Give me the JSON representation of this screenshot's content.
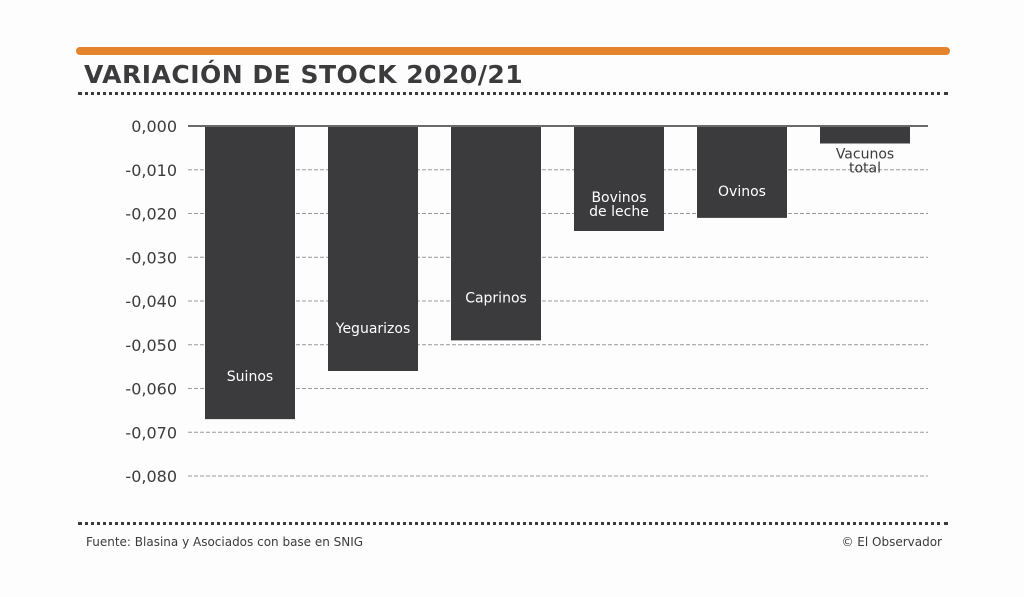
{
  "title": "VARIACIÓN DE STOCK 2020/21",
  "source": "Fuente: Blasina y Asociados con base en SNIG",
  "credit": "© El Observador",
  "colors": {
    "accent": "#e4842c",
    "bar": "#3b3b3d",
    "grid": "#9a9a9a"
  },
  "chart_data": {
    "type": "bar",
    "title": "VARIACIÓN DE STOCK 2020/21",
    "xlabel": "",
    "ylabel": "",
    "categories": [
      [
        "Suinos"
      ],
      [
        "Yeguarizos"
      ],
      [
        "Caprinos"
      ],
      [
        "Bovinos",
        "de leche"
      ],
      [
        "Ovinos"
      ],
      [
        "Vacunos",
        "total"
      ]
    ],
    "values": [
      -0.067,
      -0.056,
      -0.049,
      -0.024,
      -0.021,
      -0.004
    ],
    "ylim": [
      -0.08,
      0
    ],
    "yticks": [
      0,
      -0.01,
      -0.02,
      -0.03,
      -0.04,
      -0.05,
      -0.06,
      -0.07,
      -0.08
    ],
    "ytick_labels": [
      "0,000",
      "-0,010",
      "-0,020",
      "-0,030",
      "-0,040",
      "-0,050",
      "-0,060",
      "-0,070",
      "-0,080"
    ],
    "grid": true,
    "legend": "none"
  }
}
